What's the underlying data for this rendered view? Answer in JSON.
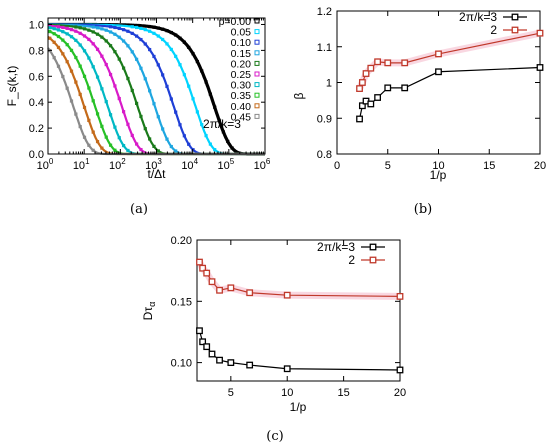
{
  "chart_data": [
    {
      "id": "a",
      "type": "line",
      "panel_label": "(a)",
      "xlabel": "t/Δt",
      "ylabel": "F_s(k,t)",
      "xscale": "log",
      "xlim": [
        1,
        1000000
      ],
      "ylim": [
        0,
        1.05
      ],
      "x_ticks": [
        {
          "v": 1,
          "base": "10",
          "exp": "0"
        },
        {
          "v": 10,
          "base": "10",
          "exp": "1"
        },
        {
          "v": 100,
          "base": "10",
          "exp": "2"
        },
        {
          "v": 1000,
          "base": "10",
          "exp": "3"
        },
        {
          "v": 10000,
          "base": "10",
          "exp": "4"
        },
        {
          "v": 100000,
          "base": "10",
          "exp": "5"
        },
        {
          "v": 1000000,
          "base": "10",
          "exp": "6"
        }
      ],
      "y_ticks": [
        {
          "v": 0,
          "label": "0.0"
        },
        {
          "v": 0.2,
          "label": "0.2"
        },
        {
          "v": 0.4,
          "label": "0.4"
        },
        {
          "v": 0.6,
          "label": "0.6"
        },
        {
          "v": 0.8,
          "label": "0.8"
        },
        {
          "v": 1.0,
          "label": "1.0"
        }
      ],
      "annotation": "2π/k=3",
      "legend_placement": "right",
      "series": [
        {
          "name": "p=0.00",
          "color": "#000000",
          "tau": 40000,
          "beta": 1.0
        },
        {
          "name": "0.05",
          "color": "#00d4ff",
          "tau": 12000,
          "beta": 1.0
        },
        {
          "name": "0.10",
          "color": "#1f3fd6",
          "tau": 3000,
          "beta": 1.0
        },
        {
          "name": "0.15",
          "color": "#1ea6e0",
          "tau": 900,
          "beta": 1.0
        },
        {
          "name": "0.20",
          "color": "#1a7a1a",
          "tau": 300,
          "beta": 1.0
        },
        {
          "name": "0.25",
          "color": "#d81ac8",
          "tau": 110,
          "beta": 1.0
        },
        {
          "name": "0.30",
          "color": "#00b8c4",
          "tau": 45,
          "beta": 1.0
        },
        {
          "name": "0.35",
          "color": "#26c026",
          "tau": 20,
          "beta": 1.0
        },
        {
          "name": "0.40",
          "color": "#c46a1a",
          "tau": 10,
          "beta": 1.0
        },
        {
          "name": "0.45",
          "color": "#8a8a8a",
          "tau": 5,
          "beta": 1.0
        }
      ]
    },
    {
      "id": "b",
      "type": "line",
      "panel_label": "(b)",
      "xlabel": "1/p",
      "ylabel": "β",
      "xlim": [
        0,
        20
      ],
      "ylim": [
        0.8,
        1.2
      ],
      "x_ticks": [
        0,
        5,
        10,
        15,
        20
      ],
      "y_ticks": [
        0.8,
        0.9,
        1,
        1.1,
        1.2
      ],
      "legend_placement": "top-right",
      "series": [
        {
          "name": "2π/k=3",
          "color": "#000000",
          "x": [
            2.22,
            2.5,
            2.86,
            3.33,
            4,
            5,
            6.67,
            10,
            20
          ],
          "y": [
            0.898,
            0.935,
            0.948,
            0.94,
            0.958,
            0.985,
            0.985,
            1.03,
            1.042
          ]
        },
        {
          "name": "2",
          "color": "#c0392b",
          "x": [
            2.22,
            2.5,
            2.86,
            3.33,
            4,
            5,
            6.67,
            10,
            20
          ],
          "y": [
            0.983,
            1.0,
            1.025,
            1.04,
            1.058,
            1.055,
            1.055,
            1.08,
            1.138
          ]
        }
      ]
    },
    {
      "id": "c",
      "type": "line",
      "panel_label": "(c)",
      "xlabel": "1/p",
      "ylabel": "Dτ_α",
      "xlim": [
        2,
        20
      ],
      "ylim": [
        0.085,
        0.2
      ],
      "x_ticks": [
        5,
        10,
        15,
        20
      ],
      "y_ticks": [
        {
          "v": 0.1,
          "label": "0.10"
        },
        {
          "v": 0.15,
          "label": "0.15"
        },
        {
          "v": 0.2,
          "label": "0.20"
        }
      ],
      "legend_placement": "top-right",
      "series": [
        {
          "name": "2π/k=3",
          "color": "#000000",
          "x": [
            2.22,
            2.5,
            2.86,
            3.33,
            4,
            5,
            6.67,
            10,
            20
          ],
          "y": [
            0.126,
            0.117,
            0.113,
            0.107,
            0.102,
            0.1,
            0.098,
            0.095,
            0.094
          ]
        },
        {
          "name": "2",
          "color": "#c0392b",
          "x": [
            2.22,
            2.5,
            2.86,
            3.33,
            4,
            5,
            6.67,
            10,
            20
          ],
          "y": [
            0.182,
            0.177,
            0.173,
            0.166,
            0.159,
            0.161,
            0.157,
            0.155,
            0.154
          ]
        }
      ]
    }
  ]
}
